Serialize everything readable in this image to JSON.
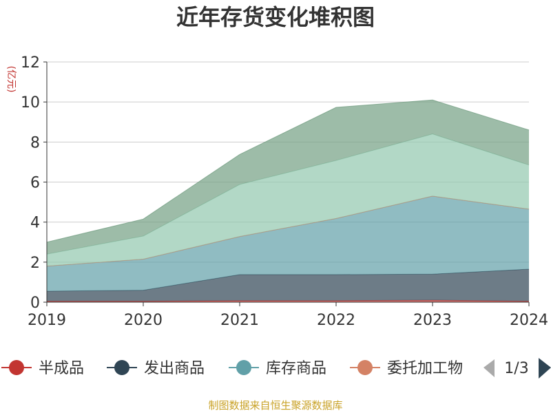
{
  "chart_data": {
    "type": "area",
    "stacked": true,
    "title": "近年存货变化堆积图",
    "ylabel": "(亿元)",
    "categories": [
      "2019",
      "2020",
      "2021",
      "2022",
      "2023",
      "2024"
    ],
    "ylim": [
      0,
      12
    ],
    "yticks": [
      0,
      2,
      4,
      6,
      8,
      10,
      12
    ],
    "grid": true,
    "series": [
      {
        "name": "半成品",
        "color": "#c23531",
        "values": [
          0.05,
          0.05,
          0.08,
          0.08,
          0.1,
          0.05
        ]
      },
      {
        "name": "发出商品",
        "color": "#2f4554",
        "values": [
          0.5,
          0.55,
          1.3,
          1.3,
          1.3,
          1.6
        ]
      },
      {
        "name": "库存商品",
        "color": "#61a0a8",
        "values": [
          1.25,
          1.55,
          1.9,
          2.8,
          3.9,
          3.0
        ]
      },
      {
        "name": "委托加工物资",
        "color": "#d48265",
        "values": [
          0.0,
          0.0,
          0.0,
          0.0,
          0.0,
          0.0
        ]
      },
      {
        "name": "",
        "color": "#91c7ae",
        "values": [
          0.6,
          1.15,
          2.6,
          2.9,
          3.1,
          2.2
        ]
      },
      {
        "name": "",
        "color": "#749f83",
        "values": [
          0.6,
          0.85,
          1.5,
          2.65,
          1.7,
          1.75
        ]
      }
    ]
  },
  "legend": {
    "items": [
      {
        "label": "半成品",
        "color": "#c23531"
      },
      {
        "label": "发出商品",
        "color": "#2f4554"
      },
      {
        "label": "库存商品",
        "color": "#61a0a8"
      },
      {
        "label": "委托加工物",
        "color": "#d48265"
      }
    ],
    "page": "1/3"
  },
  "source": "制图数据来自恒生聚源数据库"
}
